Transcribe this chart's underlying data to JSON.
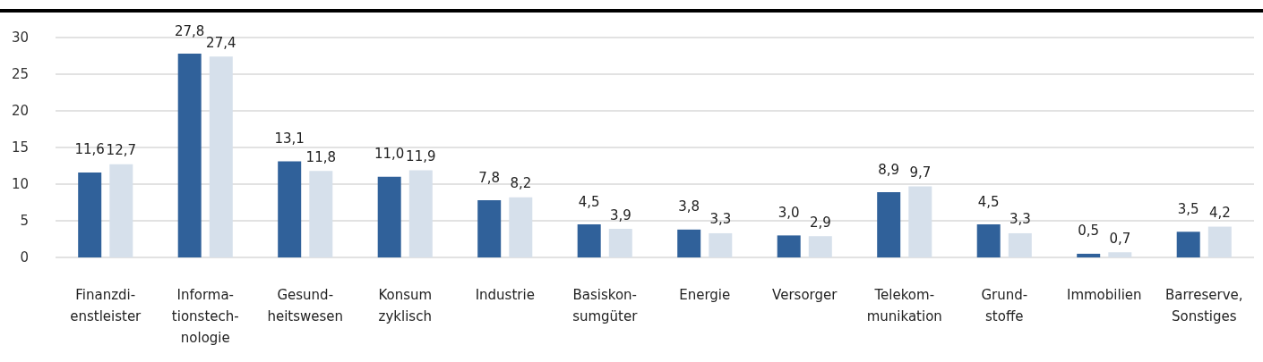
{
  "chart_data": {
    "type": "bar",
    "categories": [
      "Finanzdi-\nenstleister",
      "Informa-\ntionstech-\nnologie",
      "Gesund-\nheitswesen",
      "Konsum\nzyklisch",
      "Industrie",
      "Basiskon-\nsumgüter",
      "Energie",
      "Versorger",
      "Telekom-\nmunikation",
      "Grund-\nstoffe",
      "Immobilien",
      "Barreserve,\nSonstiges"
    ],
    "series": [
      {
        "color": "#30619a",
        "values": [
          11.6,
          27.8,
          13.1,
          11.0,
          7.8,
          4.5,
          3.8,
          3.0,
          8.9,
          4.5,
          0.5,
          3.5
        ],
        "value_labels": [
          "11,6",
          "27,8",
          "13,1",
          "11,0",
          "7,8",
          "4,5",
          "3,8",
          "3,0",
          "8,9",
          "4,5",
          "0,5",
          "3,5"
        ]
      },
      {
        "color": "#d6e0eb",
        "values": [
          12.7,
          27.4,
          11.8,
          11.9,
          8.2,
          3.9,
          3.3,
          2.9,
          9.7,
          3.3,
          0.7,
          4.2
        ],
        "value_labels": [
          "12,7",
          "27,4",
          "11,8",
          "11,9",
          "8,2",
          "3,9",
          "3,3",
          "2,9",
          "9,7",
          "3,3",
          "0,7",
          "4,2"
        ]
      }
    ],
    "ylim": [
      0,
      30
    ],
    "yticks": [
      0,
      5,
      10,
      15,
      20,
      25,
      30
    ],
    "grid": "y"
  }
}
